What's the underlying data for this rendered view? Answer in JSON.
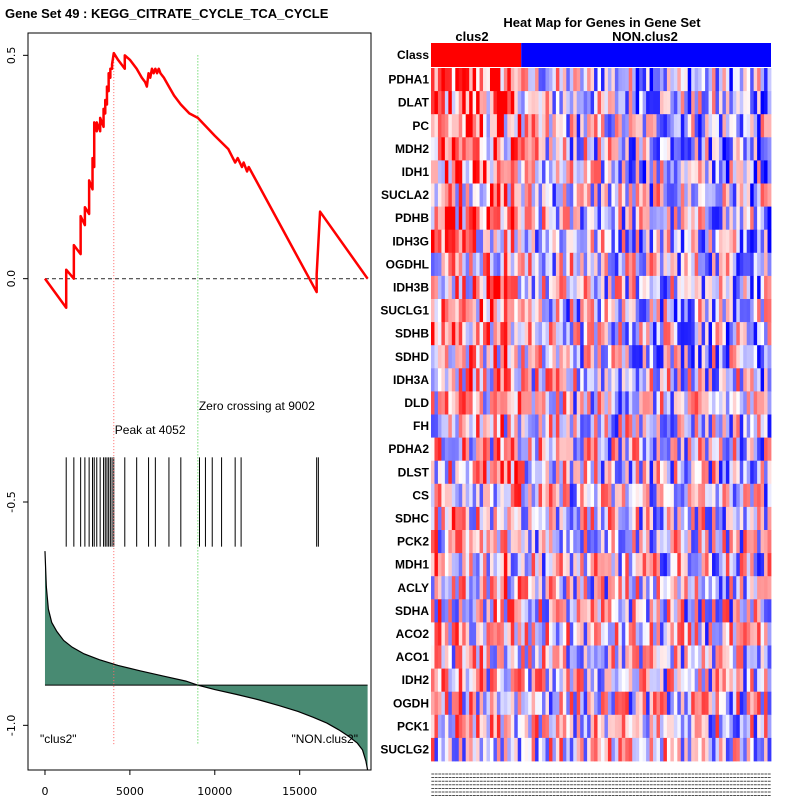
{
  "chart_data": [
    {
      "type": "line",
      "title": "Gene Set  49 : KEGG_CITRATE_CYCLE_TCA_CYCLE",
      "xlabel": "",
      "ylabel": "",
      "xlim": [
        -1000,
        19200
      ],
      "ylim": [
        -1.1,
        0.55
      ],
      "x_ticks": [
        0,
        5000,
        10000,
        15000
      ],
      "y_ticks": [
        0.5,
        0.0,
        -0.5,
        -1.0
      ],
      "x_tick_labels": [
        "0",
        "5000",
        "10000",
        "15000"
      ],
      "y_tick_labels": [
        "0.5",
        "0.0",
        "-0.5",
        "-1.0"
      ],
      "enrichment_score": {
        "x": [
          0,
          1250,
          1250,
          1700,
          1700,
          2100,
          2100,
          2350,
          2350,
          2600,
          2600,
          2800,
          2800,
          2900,
          2900,
          3050,
          3050,
          3250,
          3250,
          3450,
          3450,
          3550,
          3550,
          3650,
          3650,
          3750,
          3750,
          3850,
          3850,
          3950,
          3950,
          4052,
          4300,
          4700,
          4700,
          5000,
          5400,
          5700,
          5900,
          6000,
          6100,
          6200,
          6300,
          6400,
          6500,
          6600,
          6700,
          6800,
          7000,
          7300,
          7600,
          8000,
          8500,
          9002,
          10000,
          10800,
          11200,
          11350,
          11600,
          11700,
          11900,
          12000,
          14000,
          16000,
          16000,
          16200,
          19000
        ],
        "y": [
          0.0,
          -0.065,
          0.02,
          0.0,
          0.075,
          0.055,
          0.14,
          0.12,
          0.16,
          0.145,
          0.22,
          0.2,
          0.27,
          0.25,
          0.35,
          0.33,
          0.35,
          0.33,
          0.36,
          0.34,
          0.38,
          0.37,
          0.4,
          0.39,
          0.43,
          0.42,
          0.46,
          0.45,
          0.47,
          0.47,
          0.48,
          0.505,
          0.49,
          0.47,
          0.5,
          0.49,
          0.47,
          0.45,
          0.44,
          0.43,
          0.46,
          0.45,
          0.47,
          0.46,
          0.47,
          0.46,
          0.47,
          0.46,
          0.45,
          0.43,
          0.41,
          0.39,
          0.37,
          0.36,
          0.32,
          0.29,
          0.26,
          0.27,
          0.25,
          0.26,
          0.24,
          0.25,
          0.11,
          -0.03,
          0.01,
          0.15,
          0.0
        ],
        "color": "#ff0000"
      },
      "baseline_y": 0.0,
      "peak": {
        "x": 4052,
        "label": "Peak at 4052",
        "color": "#ff6666"
      },
      "zero_crossing": {
        "x": 9002,
        "label": "Zero crossing at 9002",
        "color": "#33cc33"
      },
      "hit_positions": [
        1250,
        1700,
        2100,
        2350,
        2600,
        2800,
        2900,
        3050,
        3250,
        3450,
        3550,
        3650,
        3750,
        3850,
        3950,
        4052,
        4700,
        5400,
        6100,
        6500,
        7300,
        8000,
        9100,
        9450,
        9850,
        10400,
        11200,
        11550,
        16000,
        16100
      ],
      "hit_range_y": [
        -0.4,
        -0.6
      ],
      "ranked_metric": {
        "baseline_y": -0.91,
        "x": [
          0,
          80,
          200,
          400,
          700,
          1100,
          1600,
          2300,
          3200,
          4300,
          5600,
          7000,
          8300,
          9002,
          10000,
          11300,
          12600,
          13800,
          14900,
          15800,
          16600,
          17300,
          17900,
          18400,
          18700,
          18900,
          19000
        ],
        "y": [
          -0.61,
          -0.69,
          -0.74,
          -0.77,
          -0.79,
          -0.81,
          -0.825,
          -0.84,
          -0.853,
          -0.866,
          -0.878,
          -0.89,
          -0.901,
          -0.91,
          -0.92,
          -0.931,
          -0.943,
          -0.956,
          -0.969,
          -0.982,
          -0.995,
          -1.01,
          -1.025,
          -1.04,
          -1.055,
          -1.08,
          -1.1
        ],
        "fill_color": "#488a72",
        "line_color": "#000000"
      },
      "annotations": [
        {
          "text": "\"clus2\"",
          "at": "bottom-left"
        },
        {
          "text": "\"NON.clus2\"",
          "at": "bottom-right"
        }
      ]
    },
    {
      "type": "heatmap",
      "title": "Heat Map for Genes in Gene Set",
      "class_labels": [
        "clus2",
        "NON.clus2"
      ],
      "class_axis_label": "Class",
      "class_colors": [
        "#ff0000",
        "#0000ff"
      ],
      "class_sizes": [
        26,
        72
      ],
      "genes": [
        "PDHA1",
        "DLAT",
        "PC",
        "MDH2",
        "IDH1",
        "SUCLA2",
        "PDHB",
        "IDH3G",
        "OGDHL",
        "IDH3B",
        "SUCLG1",
        "SDHB",
        "SDHD",
        "IDH3A",
        "DLD",
        "FH",
        "PDHA2",
        "DLST",
        "CS",
        "SDHC",
        "PCK2",
        "MDH1",
        "ACLY",
        "SDHA",
        "ACO2",
        "ACO1",
        "IDH2",
        "OGDH",
        "PCK1",
        "SUCLG2"
      ],
      "row_bias": [
        0.55,
        0.5,
        0.35,
        0.4,
        0.45,
        0.3,
        0.35,
        0.25,
        0.2,
        0.25,
        0.3,
        0.3,
        0.25,
        0.2,
        0.2,
        0.15,
        0.1,
        0.2,
        0.15,
        0.15,
        0.1,
        0.1,
        0.1,
        0.1,
        0.1,
        0.05,
        0.05,
        0.05,
        0.05,
        0.05
      ],
      "color_low": "#0000ff",
      "color_mid": "#ffffff",
      "color_high": "#ff0000"
    }
  ]
}
